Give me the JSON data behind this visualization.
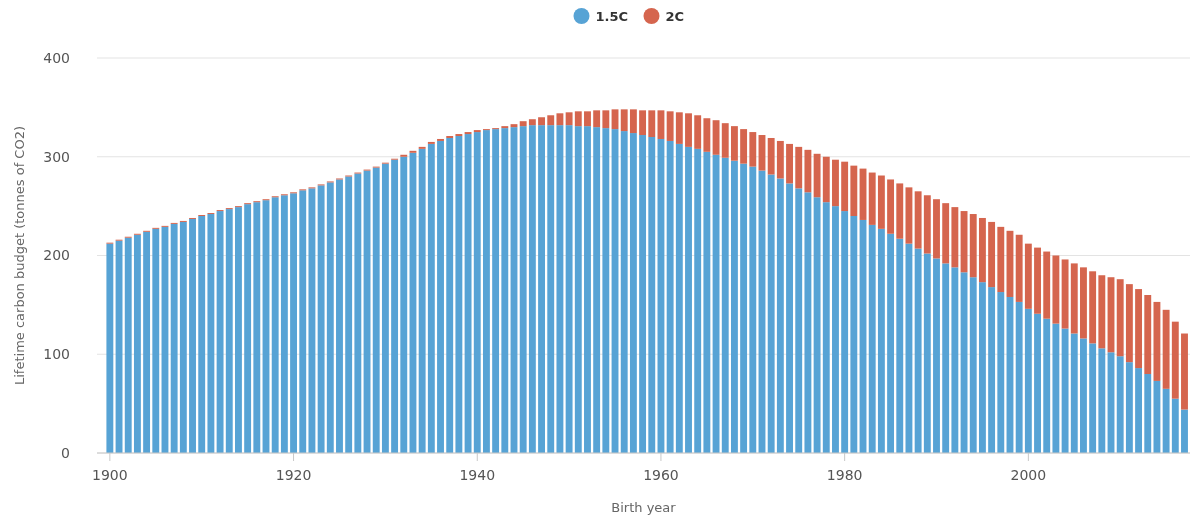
{
  "chart_data": {
    "type": "bar",
    "stacked": true,
    "xlabel": "Birth year",
    "ylabel": "Lifetime carbon budget (tonnes of CO2)",
    "x": [
      1900,
      1901,
      1902,
      1903,
      1904,
      1905,
      1906,
      1907,
      1908,
      1909,
      1910,
      1911,
      1912,
      1913,
      1914,
      1915,
      1916,
      1917,
      1918,
      1919,
      1920,
      1921,
      1922,
      1923,
      1924,
      1925,
      1926,
      1927,
      1928,
      1929,
      1930,
      1931,
      1932,
      1933,
      1934,
      1935,
      1936,
      1937,
      1938,
      1939,
      1940,
      1941,
      1942,
      1943,
      1944,
      1945,
      1946,
      1947,
      1948,
      1949,
      1950,
      1951,
      1952,
      1953,
      1954,
      1955,
      1956,
      1957,
      1958,
      1959,
      1960,
      1961,
      1962,
      1963,
      1964,
      1965,
      1966,
      1967,
      1968,
      1969,
      1970,
      1971,
      1972,
      1973,
      1974,
      1975,
      1976,
      1977,
      1978,
      1979,
      1980,
      1981,
      1982,
      1983,
      1984,
      1985,
      1986,
      1987,
      1988,
      1989,
      1990,
      1991,
      1992,
      1993,
      1994,
      1995,
      1996,
      1997,
      1998,
      1999,
      2000,
      2001,
      2002,
      2003,
      2004,
      2005,
      2006,
      2007,
      2008,
      2009,
      2010,
      2011,
      2012,
      2013,
      2014,
      2015,
      2016,
      2017
    ],
    "series": [
      {
        "name": "1.5C",
        "color": "#57a3d5",
        "values": [
          212,
          215,
          218,
          221,
          224,
          227,
          229,
          232,
          234,
          237,
          240,
          242,
          245,
          247,
          249,
          252,
          254,
          256,
          259,
          261,
          263,
          266,
          268,
          271,
          274,
          277,
          280,
          283,
          286,
          289,
          293,
          297,
          300,
          304,
          308,
          313,
          316,
          319,
          321,
          323,
          325,
          327,
          328,
          329,
          330,
          331,
          332,
          332,
          332,
          332,
          332,
          331,
          331,
          330,
          329,
          328,
          326,
          324,
          322,
          320,
          318,
          316,
          313,
          310,
          308,
          305,
          302,
          299,
          296,
          293,
          290,
          286,
          282,
          278,
          273,
          268,
          264,
          259,
          254,
          250,
          245,
          240,
          236,
          231,
          227,
          222,
          217,
          212,
          207,
          202,
          197,
          192,
          188,
          183,
          178,
          173,
          168,
          163,
          158,
          153,
          146,
          141,
          136,
          131,
          126,
          121,
          116,
          111,
          106,
          102,
          98,
          92,
          86,
          80,
          73,
          65,
          55,
          44
        ]
      },
      {
        "name": "2C",
        "color": "#d5654e",
        "values": [
          1,
          1,
          1,
          1,
          1,
          1,
          1,
          1,
          1,
          1,
          1,
          1,
          1,
          1,
          1,
          1,
          1,
          1,
          1,
          1,
          1,
          1,
          1,
          1,
          1,
          1,
          1,
          1,
          1,
          1,
          1,
          1,
          2,
          2,
          2,
          2,
          2,
          2,
          2,
          2,
          2,
          1,
          1,
          2,
          3,
          5,
          6,
          8,
          10,
          12,
          13,
          15,
          15,
          17,
          18,
          20,
          22,
          24,
          25,
          27,
          29,
          30,
          32,
          34,
          34,
          34,
          35,
          35,
          35,
          35,
          35,
          36,
          37,
          38,
          40,
          42,
          43,
          44,
          46,
          47,
          50,
          51,
          52,
          53,
          54,
          55,
          56,
          57,
          58,
          59,
          60,
          61,
          61,
          62,
          64,
          65,
          66,
          66,
          67,
          68,
          66,
          67,
          68,
          69,
          70,
          71,
          72,
          73,
          74,
          76,
          78,
          79,
          80,
          80,
          80,
          80,
          78,
          77
        ]
      }
    ],
    "xlim": [
      1898.6,
      2017.6
    ],
    "xticks": [
      1900,
      1920,
      1940,
      1960,
      1980,
      2000
    ],
    "ylim": [
      0,
      400
    ],
    "yticks": [
      0,
      100,
      200,
      300,
      400
    ],
    "grid": "y",
    "legend": "top"
  }
}
